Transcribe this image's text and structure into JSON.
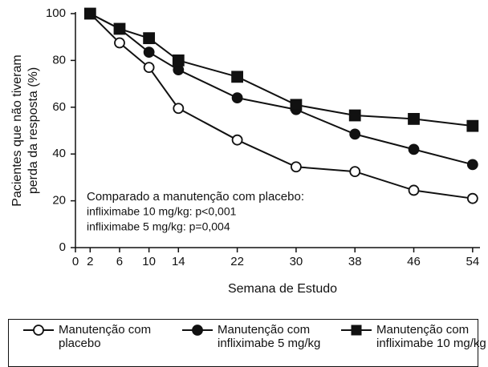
{
  "chart_data": {
    "type": "line",
    "xlabel": "Semana de Estudo",
    "ylabel": [
      "Pacientes que não tiveram",
      "perda da resposta (%)"
    ],
    "x": [
      2,
      6,
      10,
      14,
      22,
      30,
      38,
      46,
      54
    ],
    "xlim": [
      0,
      55
    ],
    "xticks": [
      0,
      2,
      6,
      10,
      14,
      22,
      30,
      38,
      46,
      54
    ],
    "ylim": [
      0,
      100
    ],
    "yticks": [
      0,
      20,
      40,
      60,
      80,
      100
    ],
    "annotations": [
      "Comparado a manutenção com placebo:",
      "infliximabe 10 mg/kg:  p<0,001",
      "infliximabe 5 mg/kg:    p=0,004"
    ],
    "series": [
      {
        "name": "Manutenção com placebo",
        "color": "#111111",
        "marker": "circle-open",
        "values": [
          100,
          87.5,
          77,
          59.5,
          46,
          34.5,
          32.5,
          24.5,
          21
        ]
      },
      {
        "name": "Manutenção com infliximabe 5 mg/kg",
        "color": "#111111",
        "marker": "circle",
        "values": [
          100,
          93.5,
          83.5,
          76,
          64,
          59,
          48.5,
          42,
          35.5
        ]
      },
      {
        "name": "Manutenção com infliximabe 10 mg/kg",
        "color": "#111111",
        "marker": "square",
        "values": [
          100,
          93.5,
          89.5,
          80,
          73,
          61,
          56.5,
          55,
          52
        ]
      }
    ]
  }
}
